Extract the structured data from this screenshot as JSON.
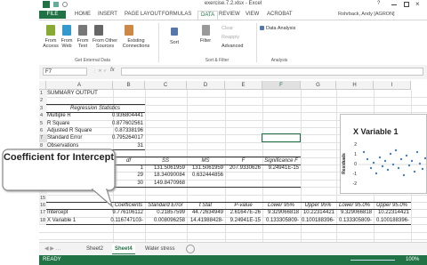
{
  "window": {
    "title": "exercise.7.2.xlsx - Excel",
    "help": "?"
  },
  "ribbon": {
    "tabs": [
      "FILE",
      "HOME",
      "INSERT",
      "PAGE LAYOUT",
      "FORMULAS",
      "DATA",
      "REVIEW",
      "VIEW",
      "ACROBAT"
    ],
    "user": "Rohrback, Andy [AGRON]",
    "get_external_data": {
      "buttons": [
        "From Access",
        "From Web",
        "From Text",
        "From Other Sources",
        "Existing Connections"
      ],
      "label": "Get External Data"
    },
    "sort_filter": {
      "buttons": [
        "Sort",
        "Filter",
        "Clear",
        "Reapply",
        "Advanced"
      ],
      "label": "Sort & Filter"
    },
    "analysis": {
      "buttons": [
        "Data Analysis"
      ],
      "label": "Analysis"
    }
  },
  "formula_bar": {
    "name_box": "F7",
    "fx": "fx"
  },
  "sheet": {
    "column_headers": [
      "A",
      "B",
      "C",
      "D",
      "E",
      "F",
      "G",
      "H",
      "I"
    ],
    "row_headers": [
      "1",
      "2",
      "3",
      "4",
      "5",
      "6",
      "7",
      "8",
      "9",
      "10",
      "11",
      "12",
      "13",
      "14",
      "15",
      "16",
      "17",
      "18"
    ],
    "rows": [
      [
        "SUMMARY OUTPUT",
        null,
        null,
        null,
        null,
        null,
        null,
        null,
        null
      ],
      [
        null,
        null,
        null,
        null,
        null,
        null,
        null,
        null,
        null
      ],
      [
        "Regression Statistics",
        null,
        null,
        null,
        null,
        null,
        null,
        null,
        null
      ],
      [
        "Multiple R",
        "0.936804441",
        null,
        null,
        null,
        null,
        null,
        null,
        null
      ],
      [
        "R Square",
        "0.877602561",
        null,
        null,
        null,
        null,
        null,
        null,
        null
      ],
      [
        "Adjusted R Square",
        "0.87338196",
        null,
        null,
        null,
        null,
        null,
        null,
        null
      ],
      [
        "Standard Error",
        "0.795264017",
        null,
        null,
        null,
        null,
        null,
        null,
        null
      ],
      [
        "Observations",
        "31",
        null,
        null,
        null,
        null,
        null,
        null,
        null
      ],
      [
        null,
        null,
        null,
        null,
        null,
        null,
        null,
        null,
        null
      ],
      [
        null,
        "df",
        "SS",
        "MS",
        "F",
        "Significance F",
        null,
        null,
        null
      ],
      [
        null,
        "1",
        "131.5061959",
        "131.5061959",
        "207.9330626",
        "9.24941E-15",
        null,
        null,
        null
      ],
      [
        null,
        "29",
        "18.34090084",
        "0.632444856",
        null,
        null,
        null,
        null,
        null
      ],
      [
        null,
        "30",
        "149.8470968",
        null,
        null,
        null,
        null,
        null,
        null
      ],
      [
        null,
        null,
        null,
        null,
        null,
        null,
        null,
        null,
        null
      ],
      [
        null,
        null,
        null,
        null,
        null,
        null,
        null,
        null,
        null
      ],
      [
        null,
        "Coefficients",
        "Standard Error",
        "t Stat",
        "P-value",
        "Lower 95%",
        "Upper 95%",
        "Lower 95.0%",
        "Upper 95.0%"
      ],
      [
        "Intercept",
        "9.776106112",
        "0.21857599",
        "44.72634949",
        "2.61647E-26",
        "9.329066818",
        "10.22314421",
        "9.329066818",
        "10.22314421"
      ],
      [
        "X Variable 1",
        "-0.116747103",
        "0.008096258",
        "-14.41988428",
        "9.24941E-15",
        "-0.133305809",
        "-0.100188396",
        "-0.133305809",
        "-0.100188396"
      ]
    ]
  },
  "chart": {
    "title": "X Variable 1",
    "y_label": "Residuals",
    "y_ticks": [
      "2",
      "1",
      "0",
      "-1",
      "-2"
    ]
  },
  "callout": "Coefficient for Intercept",
  "sheet_tabs": [
    "Sheet2",
    "Sheet4",
    "Water stress"
  ],
  "status": {
    "mode": "READY",
    "zoom": "100%"
  }
}
